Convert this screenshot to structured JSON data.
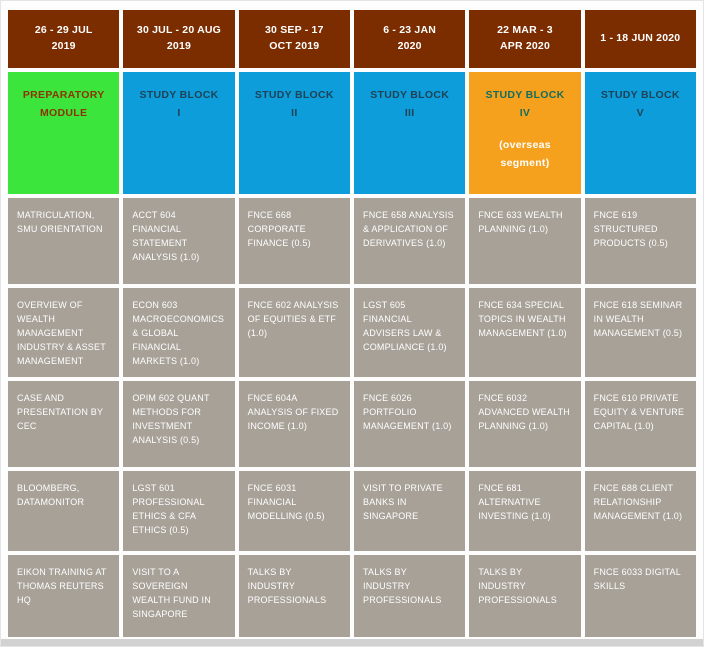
{
  "colors": {
    "header_bg": "#7C2D00",
    "preparatory_bg": "#3CE53C",
    "study_block_bg": "#0D9DDB",
    "overseas_bg": "#F5A11D",
    "course_cell_bg": "#A7A198",
    "header_text": "#FFFFFF",
    "course_text": "#FFFFFF",
    "preparatory_text": "#8C3400",
    "study_block_text": "#1D4356",
    "overseas_title_text": "#166D5D"
  },
  "table": {
    "columns": [
      {
        "date": "26 - 29 JUL\n2019",
        "block": "PREPARATORY\nMODULE",
        "cells": [
          "MATRICULATION, SMU ORIENTATION",
          "OVERVIEW OF WEALTH MANAGEMENT INDUSTRY & ASSET MANAGEMENT",
          "CASE AND PRESENTATION BY CEC",
          "BLOOMBERG, DATAMONITOR",
          "EIKON TRAINING AT THOMAS REUTERS HQ"
        ]
      },
      {
        "date": "30 JUL - 20 AUG\n2019",
        "block": "STUDY BLOCK\nI",
        "cells": [
          "ACCT 604 FINANCIAL STATEMENT ANALYSIS (1.0)",
          "ECON 603 MACROECONOMICS & GLOBAL FINANCIAL MARKETS (1.0)",
          "OPIM 602 QUANT METHODS FOR INVESTMENT ANALYSIS (0.5)",
          "LGST 601 PROFESSIONAL ETHICS & CFA ETHICS (0.5)",
          "VISIT TO A SOVEREIGN WEALTH FUND IN SINGAPORE"
        ]
      },
      {
        "date": "30 SEP - 17\nOCT 2019",
        "block": "STUDY BLOCK\nII",
        "cells": [
          "FNCE 668 CORPORATE FINANCE (0.5)",
          "FNCE 602 ANALYSIS OF EQUITIES & ETF (1.0)",
          "FNCE 604A ANALYSIS OF FIXED INCOME (1.0)",
          "FNCE 6031 FINANCIAL MODELLING (0.5)",
          "TALKS BY INDUSTRY PROFESSIONALS"
        ]
      },
      {
        "date": "6 - 23 JAN\n2020",
        "block": "STUDY BLOCK\nIII",
        "cells": [
          "FNCE 658 ANALYSIS & APPLICATION OF DERIVATIVES (1.0)",
          "LGST 605 FINANCIAL ADVISERS LAW & COMPLIANCE (1.0)",
          "FNCE 6026 PORTFOLIO MANAGEMENT (1.0)",
          "VISIT TO PRIVATE BANKS IN SINGAPORE",
          "TALKS BY INDUSTRY PROFESSIONALS"
        ]
      },
      {
        "date": "22 MAR - 3\nAPR 2020",
        "block": "STUDY BLOCK\nIV",
        "block_sub": "(overseas\nsegment)",
        "cells": [
          "FNCE 633 WEALTH PLANNING (1.0)",
          "FNCE 634 SPECIAL TOPICS IN WEALTH MANAGEMENT (1.0)",
          "FNCE 6032 ADVANCED WEALTH PLANNING (1.0)",
          "FNCE 681 ALTERNATIVE INVESTING (1.0)",
          "TALKS BY INDUSTRY PROFESSIONALS"
        ]
      },
      {
        "date": "1 - 18 JUN 2020",
        "block": "STUDY BLOCK\nV",
        "cells": [
          "FNCE 619 STRUCTURED PRODUCTS (0.5)",
          "FNCE 618 SEMINAR IN WEALTH MANAGEMENT (0.5)",
          "FNCE 610 PRIVATE EQUITY & VENTURE CAPITAL (1.0)",
          "FNCE 688 CLIENT RELATIONSHIP MANAGEMENT (1.0)",
          "FNCE 6033 DIGITAL SKILLS"
        ]
      }
    ]
  }
}
